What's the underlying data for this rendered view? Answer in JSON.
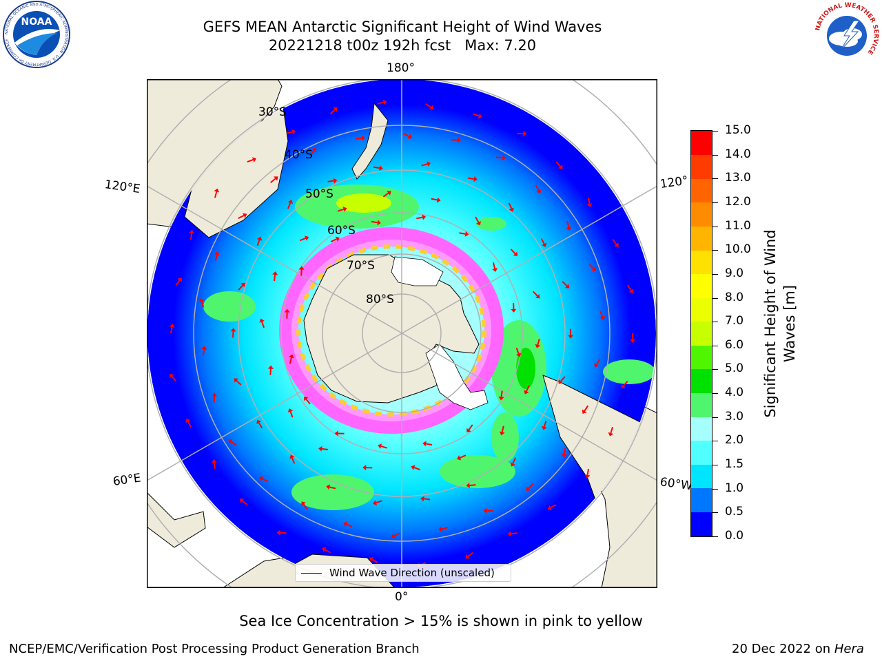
{
  "header": {
    "title_line1": "GEFS MEAN Antarctic Significant Height of Wind Waves",
    "title_line2": "20221218 t00z 192h fcst   Max: 7.20"
  },
  "logos": {
    "noaa_text": "NOAA",
    "noaa_ring_text": "NATIONAL OCEANIC AND ATMOSPHERIC ADMINISTRATION · U.S. DEPARTMENT OF COMMERCE",
    "nws_ring_text": "NATIONAL WEATHER SERVICE"
  },
  "map": {
    "projection": "south-polar-stereographic",
    "longitude_labels": {
      "top": "180°",
      "bottom": "0°",
      "upper_left": "120°E",
      "upper_right": "120°",
      "lower_left": "60°E",
      "lower_right": "60°W"
    },
    "latitude_labels": [
      "30°S",
      "40°S",
      "50°S",
      "60°S",
      "70°S",
      "80°S"
    ],
    "legend_text": "Wind Wave Direction (unscaled)",
    "colors": {
      "land": "#efebdb",
      "open_water": "#ffffff",
      "grid": "#b0b0b0",
      "arrow": "#ff0000"
    }
  },
  "colorbar": {
    "title": "Significant Height of Wind Waves [m]",
    "title_line1": "Significant Height of Wind",
    "title_line2": "Waves [m]",
    "ticks": [
      "0.0",
      "0.5",
      "1.0",
      "1.5",
      "2.0",
      "3.0",
      "4.0",
      "5.0",
      "6.0",
      "7.0",
      "8.0",
      "9.0",
      "10.0",
      "11.0",
      "12.0",
      "13.0",
      "14.0",
      "15.0"
    ],
    "colors": [
      "#0000ff",
      "#0077ff",
      "#00e5ff",
      "#50ffff",
      "#a5ffff",
      "#50f56e",
      "#00e100",
      "#50f500",
      "#c8ff00",
      "#ebff00",
      "#ffff00",
      "#ffe100",
      "#ffb400",
      "#ff8c00",
      "#ff6400",
      "#ff3c00",
      "#ff0000"
    ]
  },
  "footer": {
    "note": "Sea Ice Concentration > 15% is shown in pink to yellow",
    "credit": "NCEP/EMC/Verification Post Processing Product Generation Branch",
    "date": "20 Dec 2022 on",
    "host": "Hera"
  }
}
